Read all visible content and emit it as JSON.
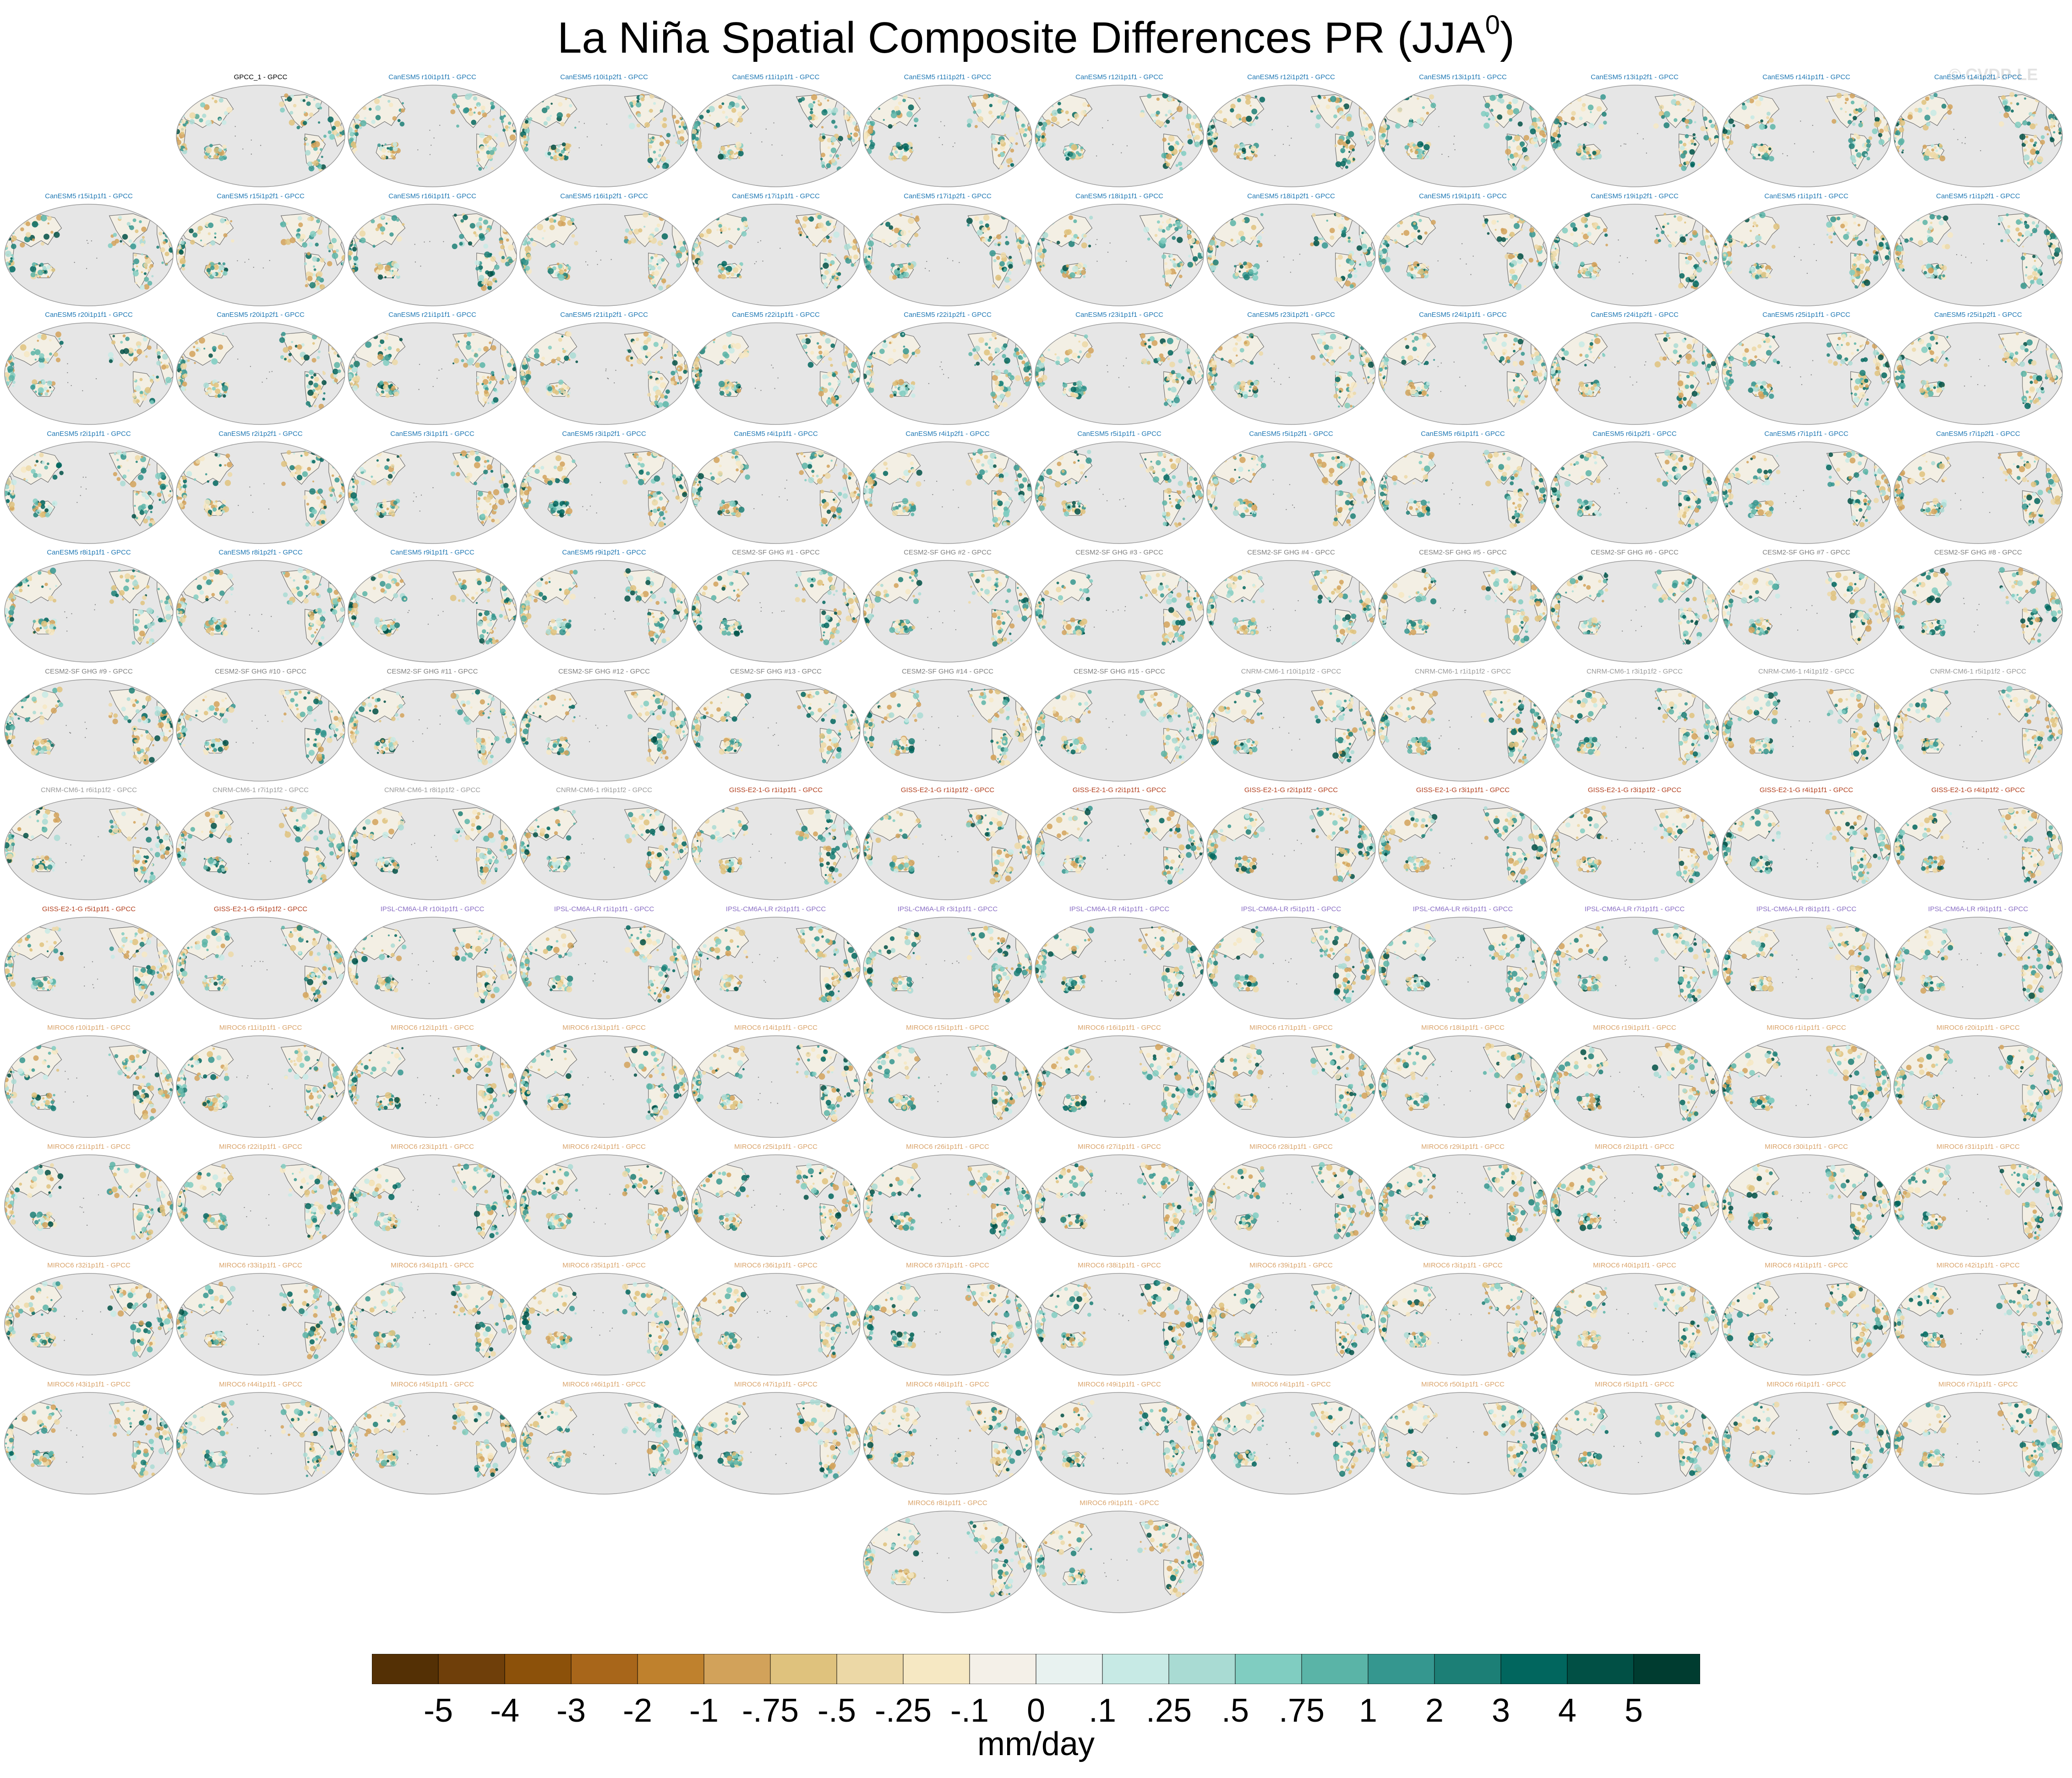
{
  "title": "La Niña Spatial Composite Differences PR (JJA",
  "title_sup": "0",
  "title_close": ")",
  "watermark": "© CVDP-LE",
  "chart_data": {
    "type": "heatmap",
    "variable": "PR",
    "season": "JJA",
    "map_projection": "robinson",
    "map_background_color": "#e6e6e6",
    "observation_panel": "GPCC_1 - GPCC",
    "panels": [
      {
        "label": "GPCC_1 - GPCC",
        "model": "GPCC"
      },
      {
        "label": "CanESM5 r10i1p1f1 - GPCC",
        "model": "CanESM5"
      },
      {
        "label": "CanESM5 r10i1p2f1 - GPCC",
        "model": "CanESM5"
      },
      {
        "label": "CanESM5 r11i1p1f1 - GPCC",
        "model": "CanESM5"
      },
      {
        "label": "CanESM5 r11i1p2f1 - GPCC",
        "model": "CanESM5"
      },
      {
        "label": "CanESM5 r12i1p1f1 - GPCC",
        "model": "CanESM5"
      },
      {
        "label": "CanESM5 r12i1p2f1 - GPCC",
        "model": "CanESM5"
      },
      {
        "label": "CanESM5 r13i1p1f1 - GPCC",
        "model": "CanESM5"
      },
      {
        "label": "CanESM5 r13i1p2f1 - GPCC",
        "model": "CanESM5"
      },
      {
        "label": "CanESM5 r14i1p1f1 - GPCC",
        "model": "CanESM5"
      },
      {
        "label": "CanESM5 r14i1p2f1 - GPCC",
        "model": "CanESM5"
      },
      {
        "label": "CanESM5 r15i1p1f1 - GPCC",
        "model": "CanESM5"
      },
      {
        "label": "CanESM5 r15i1p2f1 - GPCC",
        "model": "CanESM5"
      },
      {
        "label": "CanESM5 r16i1p1f1 - GPCC",
        "model": "CanESM5"
      },
      {
        "label": "CanESM5 r16i1p2f1 - GPCC",
        "model": "CanESM5"
      },
      {
        "label": "CanESM5 r17i1p1f1 - GPCC",
        "model": "CanESM5"
      },
      {
        "label": "CanESM5 r17i1p2f1 - GPCC",
        "model": "CanESM5"
      },
      {
        "label": "CanESM5 r18i1p1f1 - GPCC",
        "model": "CanESM5"
      },
      {
        "label": "CanESM5 r18i1p2f1 - GPCC",
        "model": "CanESM5"
      },
      {
        "label": "CanESM5 r19i1p1f1 - GPCC",
        "model": "CanESM5"
      },
      {
        "label": "CanESM5 r19i1p2f1 - GPCC",
        "model": "CanESM5"
      },
      {
        "label": "CanESM5 r1i1p1f1 - GPCC",
        "model": "CanESM5"
      },
      {
        "label": "CanESM5 r1i1p2f1 - GPCC",
        "model": "CanESM5"
      },
      {
        "label": "CanESM5 r20i1p1f1 - GPCC",
        "model": "CanESM5"
      },
      {
        "label": "CanESM5 r20i1p2f1 - GPCC",
        "model": "CanESM5"
      },
      {
        "label": "CanESM5 r21i1p1f1 - GPCC",
        "model": "CanESM5"
      },
      {
        "label": "CanESM5 r21i1p2f1 - GPCC",
        "model": "CanESM5"
      },
      {
        "label": "CanESM5 r22i1p1f1 - GPCC",
        "model": "CanESM5"
      },
      {
        "label": "CanESM5 r22i1p2f1 - GPCC",
        "model": "CanESM5"
      },
      {
        "label": "CanESM5 r23i1p1f1 - GPCC",
        "model": "CanESM5"
      },
      {
        "label": "CanESM5 r23i1p2f1 - GPCC",
        "model": "CanESM5"
      },
      {
        "label": "CanESM5 r24i1p1f1 - GPCC",
        "model": "CanESM5"
      },
      {
        "label": "CanESM5 r24i1p2f1 - GPCC",
        "model": "CanESM5"
      },
      {
        "label": "CanESM5 r25i1p1f1 - GPCC",
        "model": "CanESM5"
      },
      {
        "label": "CanESM5 r25i1p2f1 - GPCC",
        "model": "CanESM5"
      },
      {
        "label": "CanESM5 r2i1p1f1 - GPCC",
        "model": "CanESM5"
      },
      {
        "label": "CanESM5 r2i1p2f1 - GPCC",
        "model": "CanESM5"
      },
      {
        "label": "CanESM5 r3i1p1f1 - GPCC",
        "model": "CanESM5"
      },
      {
        "label": "CanESM5 r3i1p2f1 - GPCC",
        "model": "CanESM5"
      },
      {
        "label": "CanESM5 r4i1p1f1 - GPCC",
        "model": "CanESM5"
      },
      {
        "label": "CanESM5 r4i1p2f1 - GPCC",
        "model": "CanESM5"
      },
      {
        "label": "CanESM5 r5i1p1f1 - GPCC",
        "model": "CanESM5"
      },
      {
        "label": "CanESM5 r5i1p2f1 - GPCC",
        "model": "CanESM5"
      },
      {
        "label": "CanESM5 r6i1p1f1 - GPCC",
        "model": "CanESM5"
      },
      {
        "label": "CanESM5 r6i1p2f1 - GPCC",
        "model": "CanESM5"
      },
      {
        "label": "CanESM5 r7i1p1f1 - GPCC",
        "model": "CanESM5"
      },
      {
        "label": "CanESM5 r7i1p2f1 - GPCC",
        "model": "CanESM5"
      },
      {
        "label": "CanESM5 r8i1p1f1 - GPCC",
        "model": "CanESM5"
      },
      {
        "label": "CanESM5 r8i1p2f1 - GPCC",
        "model": "CanESM5"
      },
      {
        "label": "CanESM5 r9i1p1f1 - GPCC",
        "model": "CanESM5"
      },
      {
        "label": "CanESM5 r9i1p2f1 - GPCC",
        "model": "CanESM5"
      },
      {
        "label": "CESM2-SF GHG #1 - GPCC",
        "model": "CESM2-SF"
      },
      {
        "label": "CESM2-SF GHG #2 - GPCC",
        "model": "CESM2-SF"
      },
      {
        "label": "CESM2-SF GHG #3 - GPCC",
        "model": "CESM2-SF"
      },
      {
        "label": "CESM2-SF GHG #4 - GPCC",
        "model": "CESM2-SF"
      },
      {
        "label": "CESM2-SF GHG #5 - GPCC",
        "model": "CESM2-SF"
      },
      {
        "label": "CESM2-SF GHG #6 - GPCC",
        "model": "CESM2-SF"
      },
      {
        "label": "CESM2-SF GHG #7 - GPCC",
        "model": "CESM2-SF"
      },
      {
        "label": "CESM2-SF GHG #8 - GPCC",
        "model": "CESM2-SF"
      },
      {
        "label": "CESM2-SF GHG #9 - GPCC",
        "model": "CESM2-SF"
      },
      {
        "label": "CESM2-SF GHG #10 - GPCC",
        "model": "CESM2-SF"
      },
      {
        "label": "CESM2-SF GHG #11 - GPCC",
        "model": "CESM2-SF"
      },
      {
        "label": "CESM2-SF GHG #12 - GPCC",
        "model": "CESM2-SF"
      },
      {
        "label": "CESM2-SF GHG #13 - GPCC",
        "model": "CESM2-SF"
      },
      {
        "label": "CESM2-SF GHG #14 - GPCC",
        "model": "CESM2-SF"
      },
      {
        "label": "CESM2-SF GHG #15 - GPCC",
        "model": "CESM2-SF"
      },
      {
        "label": "CNRM-CM6-1 r10i1p1f2 - GPCC",
        "model": "CNRM-CM6-1"
      },
      {
        "label": "CNRM-CM6-1 r1i1p1f2 - GPCC",
        "model": "CNRM-CM6-1"
      },
      {
        "label": "CNRM-CM6-1 r3i1p1f2 - GPCC",
        "model": "CNRM-CM6-1"
      },
      {
        "label": "CNRM-CM6-1 r4i1p1f2 - GPCC",
        "model": "CNRM-CM6-1"
      },
      {
        "label": "CNRM-CM6-1 r5i1p1f2 - GPCC",
        "model": "CNRM-CM6-1"
      },
      {
        "label": "CNRM-CM6-1 r6i1p1f2 - GPCC",
        "model": "CNRM-CM6-1"
      },
      {
        "label": "CNRM-CM6-1 r7i1p1f2 - GPCC",
        "model": "CNRM-CM6-1"
      },
      {
        "label": "CNRM-CM6-1 r8i1p1f2 - GPCC",
        "model": "CNRM-CM6-1"
      },
      {
        "label": "CNRM-CM6-1 r9i1p1f2 - GPCC",
        "model": "CNRM-CM6-1"
      },
      {
        "label": "GISS-E2-1-G r1i1p1f1 - GPCC",
        "model": "GISS-E2-1-G"
      },
      {
        "label": "GISS-E2-1-G r1i1p1f2 - GPCC",
        "model": "GISS-E2-1-G"
      },
      {
        "label": "GISS-E2-1-G r2i1p1f1 - GPCC",
        "model": "GISS-E2-1-G"
      },
      {
        "label": "GISS-E2-1-G r2i1p1f2 - GPCC",
        "model": "GISS-E2-1-G"
      },
      {
        "label": "GISS-E2-1-G r3i1p1f1 - GPCC",
        "model": "GISS-E2-1-G"
      },
      {
        "label": "GISS-E2-1-G r3i1p1f2 - GPCC",
        "model": "GISS-E2-1-G"
      },
      {
        "label": "GISS-E2-1-G r4i1p1f1 - GPCC",
        "model": "GISS-E2-1-G"
      },
      {
        "label": "GISS-E2-1-G r4i1p1f2 - GPCC",
        "model": "GISS-E2-1-G"
      },
      {
        "label": "GISS-E2-1-G r5i1p1f1 - GPCC",
        "model": "GISS-E2-1-G"
      },
      {
        "label": "GISS-E2-1-G r5i1p1f2 - GPCC",
        "model": "GISS-E2-1-G"
      },
      {
        "label": "IPSL-CM6A-LR r10i1p1f1 - GPCC",
        "model": "IPSL-CM6A-LR"
      },
      {
        "label": "IPSL-CM6A-LR r1i1p1f1 - GPCC",
        "model": "IPSL-CM6A-LR"
      },
      {
        "label": "IPSL-CM6A-LR r2i1p1f1 - GPCC",
        "model": "IPSL-CM6A-LR"
      },
      {
        "label": "IPSL-CM6A-LR r3i1p1f1 - GPCC",
        "model": "IPSL-CM6A-LR"
      },
      {
        "label": "IPSL-CM6A-LR r4i1p1f1 - GPCC",
        "model": "IPSL-CM6A-LR"
      },
      {
        "label": "IPSL-CM6A-LR r5i1p1f1 - GPCC",
        "model": "IPSL-CM6A-LR"
      },
      {
        "label": "IPSL-CM6A-LR r6i1p1f1 - GPCC",
        "model": "IPSL-CM6A-LR"
      },
      {
        "label": "IPSL-CM6A-LR r7i1p1f1 - GPCC",
        "model": "IPSL-CM6A-LR"
      },
      {
        "label": "IPSL-CM6A-LR r8i1p1f1 - GPCC",
        "model": "IPSL-CM6A-LR"
      },
      {
        "label": "IPSL-CM6A-LR r9i1p1f1 - GPCC",
        "model": "IPSL-CM6A-LR"
      },
      {
        "label": "MIROC6 r10i1p1f1 - GPCC",
        "model": "MIROC6"
      },
      {
        "label": "MIROC6 r11i1p1f1 - GPCC",
        "model": "MIROC6"
      },
      {
        "label": "MIROC6 r12i1p1f1 - GPCC",
        "model": "MIROC6"
      },
      {
        "label": "MIROC6 r13i1p1f1 - GPCC",
        "model": "MIROC6"
      },
      {
        "label": "MIROC6 r14i1p1f1 - GPCC",
        "model": "MIROC6"
      },
      {
        "label": "MIROC6 r15i1p1f1 - GPCC",
        "model": "MIROC6"
      },
      {
        "label": "MIROC6 r16i1p1f1 - GPCC",
        "model": "MIROC6"
      },
      {
        "label": "MIROC6 r17i1p1f1 - GPCC",
        "model": "MIROC6"
      },
      {
        "label": "MIROC6 r18i1p1f1 - GPCC",
        "model": "MIROC6"
      },
      {
        "label": "MIROC6 r19i1p1f1 - GPCC",
        "model": "MIROC6"
      },
      {
        "label": "MIROC6 r1i1p1f1 - GPCC",
        "model": "MIROC6"
      },
      {
        "label": "MIROC6 r20i1p1f1 - GPCC",
        "model": "MIROC6"
      },
      {
        "label": "MIROC6 r21i1p1f1 - GPCC",
        "model": "MIROC6"
      },
      {
        "label": "MIROC6 r22i1p1f1 - GPCC",
        "model": "MIROC6"
      },
      {
        "label": "MIROC6 r23i1p1f1 - GPCC",
        "model": "MIROC6"
      },
      {
        "label": "MIROC6 r24i1p1f1 - GPCC",
        "model": "MIROC6"
      },
      {
        "label": "MIROC6 r25i1p1f1 - GPCC",
        "model": "MIROC6"
      },
      {
        "label": "MIROC6 r26i1p1f1 - GPCC",
        "model": "MIROC6"
      },
      {
        "label": "MIROC6 r27i1p1f1 - GPCC",
        "model": "MIROC6"
      },
      {
        "label": "MIROC6 r28i1p1f1 - GPCC",
        "model": "MIROC6"
      },
      {
        "label": "MIROC6 r29i1p1f1 - GPCC",
        "model": "MIROC6"
      },
      {
        "label": "MIROC6 r2i1p1f1 - GPCC",
        "model": "MIROC6"
      },
      {
        "label": "MIROC6 r30i1p1f1 - GPCC",
        "model": "MIROC6"
      },
      {
        "label": "MIROC6 r31i1p1f1 - GPCC",
        "model": "MIROC6"
      },
      {
        "label": "MIROC6 r32i1p1f1 - GPCC",
        "model": "MIROC6"
      },
      {
        "label": "MIROC6 r33i1p1f1 - GPCC",
        "model": "MIROC6"
      },
      {
        "label": "MIROC6 r34i1p1f1 - GPCC",
        "model": "MIROC6"
      },
      {
        "label": "MIROC6 r35i1p1f1 - GPCC",
        "model": "MIROC6"
      },
      {
        "label": "MIROC6 r36i1p1f1 - GPCC",
        "model": "MIROC6"
      },
      {
        "label": "MIROC6 r37i1p1f1 - GPCC",
        "model": "MIROC6"
      },
      {
        "label": "MIROC6 r38i1p1f1 - GPCC",
        "model": "MIROC6"
      },
      {
        "label": "MIROC6 r39i1p1f1 - GPCC",
        "model": "MIROC6"
      },
      {
        "label": "MIROC6 r3i1p1f1 - GPCC",
        "model": "MIROC6"
      },
      {
        "label": "MIROC6 r40i1p1f1 - GPCC",
        "model": "MIROC6"
      },
      {
        "label": "MIROC6 r41i1p1f1 - GPCC",
        "model": "MIROC6"
      },
      {
        "label": "MIROC6 r42i1p1f1 - GPCC",
        "model": "MIROC6"
      },
      {
        "label": "MIROC6 r43i1p1f1 - GPCC",
        "model": "MIROC6"
      },
      {
        "label": "MIROC6 r44i1p1f1 - GPCC",
        "model": "MIROC6"
      },
      {
        "label": "MIROC6 r45i1p1f1 - GPCC",
        "model": "MIROC6"
      },
      {
        "label": "MIROC6 r46i1p1f1 - GPCC",
        "model": "MIROC6"
      },
      {
        "label": "MIROC6 r47i1p1f1 - GPCC",
        "model": "MIROC6"
      },
      {
        "label": "MIROC6 r48i1p1f1 - GPCC",
        "model": "MIROC6"
      },
      {
        "label": "MIROC6 r49i1p1f1 - GPCC",
        "model": "MIROC6"
      },
      {
        "label": "MIROC6 r4i1p1f1 - GPCC",
        "model": "MIROC6"
      },
      {
        "label": "MIROC6 r50i1p1f1 - GPCC",
        "model": "MIROC6"
      },
      {
        "label": "MIROC6 r5i1p1f1 - GPCC",
        "model": "MIROC6"
      },
      {
        "label": "MIROC6 r6i1p1f1 - GPCC",
        "model": "MIROC6"
      },
      {
        "label": "MIROC6 r7i1p1f1 - GPCC",
        "model": "MIROC6"
      },
      {
        "label": "MIROC6 r8i1p1f1 - GPCC",
        "model": "MIROC6"
      },
      {
        "label": "MIROC6 r9i1p1f1 - GPCC",
        "model": "MIROC6"
      }
    ],
    "model_label_colors": {
      "GPCC": "#000000",
      "CanESM5": "#1f78b4",
      "CESM2-SF": "#7f7f7f",
      "CNRM-CM6-1": "#9a9a9a",
      "GISS-E2-1-G": "#b2401f",
      "IPSL-CM6A-LR": "#8a6fc4",
      "MIROC6": "#d9a36a"
    },
    "colorbar": {
      "levels": [
        "-5",
        "-4",
        "-3",
        "-2",
        "-1",
        "-.75",
        "-.5",
        "-.25",
        "-.1",
        "0",
        ".1",
        ".25",
        ".5",
        ".75",
        "1",
        "2",
        "3",
        "4",
        "5"
      ],
      "colors": [
        "#543005",
        "#6f3f0a",
        "#8c510a",
        "#a8661a",
        "#bf812d",
        "#d2a25a",
        "#dfc27d",
        "#ecd8a6",
        "#f6e8c3",
        "#f4f0e8",
        "#e8f2f0",
        "#c7eae5",
        "#a9dbd3",
        "#80cdc1",
        "#5ab4a7",
        "#35978f",
        "#1c7f76",
        "#01665e",
        "#015045",
        "#003c30"
      ],
      "units": "mm/day"
    }
  }
}
